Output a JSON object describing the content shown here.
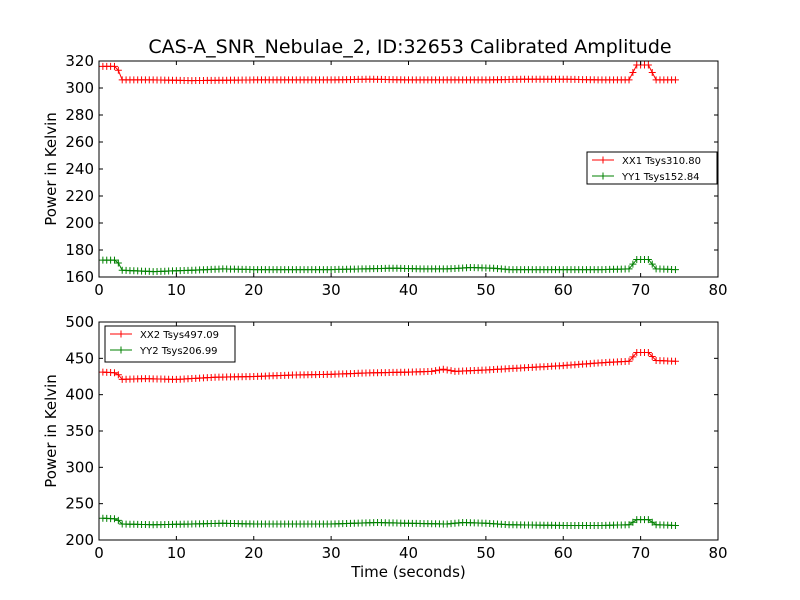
{
  "chart_data": [
    {
      "type": "line",
      "title": "CAS-A_SNR_Nebulae_2, ID:32653 Calibrated Amplitude",
      "xlabel": "",
      "ylabel": "Power in Kelvin",
      "xlim": [
        0,
        80
      ],
      "ylim": [
        160,
        320
      ],
      "xticks": [
        0,
        10,
        20,
        30,
        40,
        50,
        60,
        70,
        80
      ],
      "yticks": [
        160,
        180,
        200,
        220,
        240,
        260,
        280,
        300,
        320
      ],
      "grid": false,
      "legend_position": "center-right",
      "series": [
        {
          "name": "XX1 Tsys310.80",
          "color": "#ff0000",
          "marker": "plus",
          "points": [
            [
              0.5,
              316
            ],
            [
              2.3,
              316
            ],
            [
              3.0,
              306
            ],
            [
              7,
              306
            ],
            [
              12,
              305.5
            ],
            [
              20,
              306
            ],
            [
              30,
              306
            ],
            [
              35,
              306.5
            ],
            [
              40,
              306
            ],
            [
              45,
              306
            ],
            [
              50,
              306
            ],
            [
              55,
              306.5
            ],
            [
              60,
              306.5
            ],
            [
              65,
              306
            ],
            [
              68.5,
              306
            ],
            [
              69.5,
              317
            ],
            [
              71,
              317
            ],
            [
              72,
              306
            ],
            [
              74.5,
              306
            ]
          ]
        },
        {
          "name": "YY1 Tsys152.84",
          "color": "#008000",
          "marker": "plus",
          "points": [
            [
              0.5,
              172.5
            ],
            [
              2.3,
              172.5
            ],
            [
              3.0,
              165
            ],
            [
              7,
              164
            ],
            [
              12,
              165
            ],
            [
              16,
              166
            ],
            [
              20,
              165.5
            ],
            [
              30,
              165.5
            ],
            [
              38,
              166.5
            ],
            [
              42,
              166
            ],
            [
              45,
              166
            ],
            [
              48,
              167
            ],
            [
              51,
              166.5
            ],
            [
              53,
              165.5
            ],
            [
              60,
              165.5
            ],
            [
              65,
              165.5
            ],
            [
              68.5,
              166
            ],
            [
              69.5,
              173
            ],
            [
              71,
              173
            ],
            [
              72,
              166
            ],
            [
              74.5,
              165.5
            ]
          ]
        }
      ]
    },
    {
      "type": "line",
      "title": "",
      "xlabel": "Time (seconds)",
      "ylabel": "Power in Kelvin",
      "xlim": [
        0,
        80
      ],
      "ylim": [
        200,
        500
      ],
      "xticks": [
        0,
        10,
        20,
        30,
        40,
        50,
        60,
        70,
        80
      ],
      "yticks": [
        200,
        250,
        300,
        350,
        400,
        450,
        500
      ],
      "grid": false,
      "legend_position": "upper-left",
      "series": [
        {
          "name": "XX2 Tsys497.09",
          "color": "#ff0000",
          "marker": "plus",
          "points": [
            [
              0.5,
              431
            ],
            [
              2.3,
              430
            ],
            [
              3.0,
              421
            ],
            [
              6,
              422
            ],
            [
              10,
              421
            ],
            [
              15,
              424
            ],
            [
              20,
              425
            ],
            [
              25,
              427
            ],
            [
              30,
              428
            ],
            [
              35,
              430
            ],
            [
              40,
              431
            ],
            [
              43,
              432
            ],
            [
              44.5,
              435
            ],
            [
              46,
              432
            ],
            [
              50,
              434
            ],
            [
              55,
              437
            ],
            [
              60,
              440
            ],
            [
              65,
              444
            ],
            [
              68.5,
              446
            ],
            [
              69.5,
              458
            ],
            [
              71,
              458
            ],
            [
              72,
              447
            ],
            [
              74.5,
              446
            ]
          ]
        },
        {
          "name": "YY2 Tsys206.99",
          "color": "#008000",
          "marker": "plus",
          "points": [
            [
              0.5,
              230
            ],
            [
              2.3,
              229
            ],
            [
              3.0,
              222
            ],
            [
              7,
              221
            ],
            [
              12,
              222
            ],
            [
              16,
              223
            ],
            [
              20,
              222
            ],
            [
              30,
              222
            ],
            [
              36,
              224
            ],
            [
              40,
              223
            ],
            [
              45,
              222
            ],
            [
              47,
              224
            ],
            [
              50,
              223
            ],
            [
              53,
              221
            ],
            [
              60,
              220
            ],
            [
              65,
              220
            ],
            [
              68.5,
              221
            ],
            [
              69.5,
              228
            ],
            [
              71,
              228
            ],
            [
              72,
              221
            ],
            [
              74.5,
              220
            ]
          ]
        }
      ]
    }
  ]
}
